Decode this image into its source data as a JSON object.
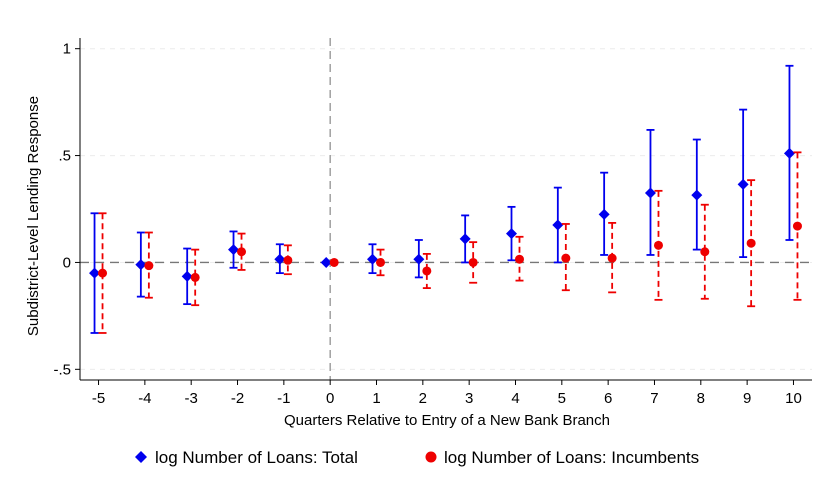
{
  "chart_data": {
    "type": "scatter",
    "title": "",
    "xlabel": "Quarters Relative to Entry of a New Bank Branch",
    "ylabel": "Subdistrict-Level Lending Response",
    "x": [
      -5,
      -4,
      -3,
      -2,
      -1,
      0,
      1,
      2,
      3,
      4,
      5,
      6,
      7,
      8,
      9,
      10
    ],
    "x_tick_labels": [
      "-5",
      "-4",
      "-3",
      "-2",
      "-1",
      "0",
      "1",
      "2",
      "3",
      "4",
      "5",
      "6",
      "7",
      "8",
      "9",
      "10"
    ],
    "ylim": [
      -0.55,
      1.05
    ],
    "y_ticks": [
      -0.5,
      0,
      0.5,
      1
    ],
    "y_tick_labels": [
      "-.5",
      "0",
      ".5",
      "1"
    ],
    "grid": true,
    "reference_lines": {
      "vertical_x": 0,
      "horizontal_y": 0
    },
    "legend_position": "bottom",
    "series": [
      {
        "name": "log Number of Loans: Total",
        "color": "#0000ee",
        "marker": "diamond",
        "values": [
          -0.05,
          -0.01,
          -0.065,
          0.06,
          0.015,
          0,
          0.015,
          0.015,
          0.11,
          0.135,
          0.175,
          0.225,
          0.325,
          0.315,
          0.365,
          0.51
        ],
        "ci_low": [
          -0.33,
          -0.16,
          -0.195,
          -0.025,
          -0.05,
          0,
          -0.05,
          -0.07,
          0,
          0.01,
          0,
          0.035,
          0.035,
          0.06,
          0.025,
          0.105
        ],
        "ci_high": [
          0.23,
          0.14,
          0.065,
          0.145,
          0.085,
          0,
          0.085,
          0.105,
          0.22,
          0.26,
          0.35,
          0.42,
          0.62,
          0.575,
          0.715,
          0.92
        ]
      },
      {
        "name": "log Number of Loans: Incumbents",
        "color": "#ee0000",
        "marker": "circle",
        "values": [
          -0.05,
          -0.015,
          -0.07,
          0.05,
          0.01,
          0,
          0,
          -0.04,
          0,
          0.015,
          0.02,
          0.02,
          0.08,
          0.05,
          0.09,
          0.17
        ],
        "ci_low": [
          -0.33,
          -0.165,
          -0.2,
          -0.035,
          -0.055,
          0,
          -0.06,
          -0.12,
          -0.095,
          -0.085,
          -0.13,
          -0.14,
          -0.175,
          -0.17,
          -0.205,
          -0.175
        ],
        "ci_high": [
          0.23,
          0.14,
          0.06,
          0.135,
          0.08,
          0,
          0.06,
          0.04,
          0.095,
          0.12,
          0.18,
          0.185,
          0.335,
          0.27,
          0.385,
          0.515
        ]
      }
    ]
  }
}
